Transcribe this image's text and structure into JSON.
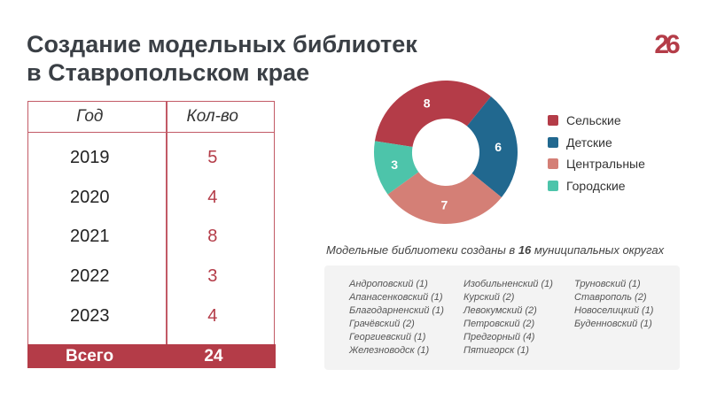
{
  "title": {
    "line1": "Создание модельных библиотек",
    "line2": "в Ставропольском крае"
  },
  "logo": "26",
  "table": {
    "headers": [
      "Год",
      "Кол-во"
    ],
    "rows": [
      {
        "year": "2019",
        "count": "5"
      },
      {
        "year": "2020",
        "count": "4"
      },
      {
        "year": "2021",
        "count": "8"
      },
      {
        "year": "2022",
        "count": "3"
      },
      {
        "year": "2023",
        "count": "4"
      }
    ],
    "total_label": "Всего",
    "total_value": "24"
  },
  "chart_data": {
    "type": "pie",
    "donut": true,
    "labels": [
      "Сельские",
      "Детские",
      "Центральные",
      "Городские"
    ],
    "values": [
      8,
      6,
      7,
      3
    ],
    "colors": [
      "#b43c48",
      "#21688f",
      "#d47f76",
      "#4dc4aa"
    ],
    "legend": "right"
  },
  "caption": {
    "pre": "Модельные библиотеки созданы в ",
    "num": "16",
    "post": " муниципальных округах"
  },
  "districts": [
    [
      "Андроповский (1)",
      "Апанасенковский (1)",
      "Благодарненский (1)",
      "Грачёвский (2)",
      "Георгиевский (1)",
      "Железноводск (1)"
    ],
    [
      "Изобильненский (1)",
      "Курский (2)",
      "Левокумский (2)",
      "Петровский (2)",
      "Предгорный (4)",
      "Пятигорск (1)"
    ],
    [
      "Труновский (1)",
      "Ставрополь (2)",
      "Новоселицкий (1)",
      "Буденновский (1)"
    ]
  ]
}
